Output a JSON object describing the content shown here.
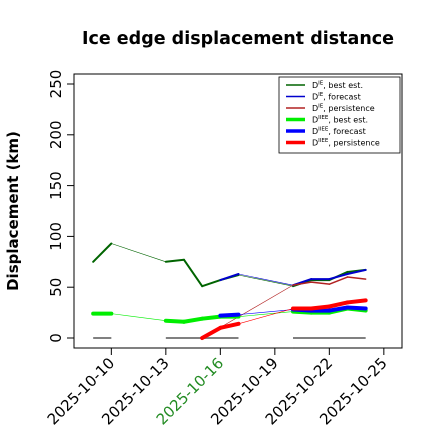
{
  "chart_data": {
    "type": "line",
    "title": "Ice edge displacement distance",
    "ylabel": "Displacement (km)",
    "xlabel": "",
    "ylim": [
      0,
      260
    ],
    "yticks": [
      0,
      50,
      100,
      150,
      200,
      250
    ],
    "xlim": [
      "2025-10-08",
      "2025-10-26"
    ],
    "xticks": [
      {
        "label": "2025-10-10",
        "color": "#000000"
      },
      {
        "label": "2025-10-13",
        "color": "#000000"
      },
      {
        "label": "2025-10-16",
        "color": "#228b22"
      },
      {
        "label": "2025-10-19",
        "color": "#000000"
      },
      {
        "label": "2025-10-22",
        "color": "#000000"
      },
      {
        "label": "2025-10-25",
        "color": "#000000"
      }
    ],
    "grid": false,
    "legend_position": "top-right",
    "series": [
      {
        "name": "D^IE, best est.",
        "legend_label": "D",
        "legend_sup": "IE",
        "legend_suffix": ", best est.",
        "color": "#006400",
        "width": 2,
        "points": [
          [
            "2025-10-09",
            75
          ],
          [
            "2025-10-10",
            93
          ],
          [
            "2025-10-13",
            75
          ],
          [
            "2025-10-14",
            77
          ],
          [
            "2025-10-15",
            51
          ],
          [
            "2025-10-16",
            57
          ],
          [
            "2025-10-17",
            62
          ],
          [
            "2025-10-20",
            51
          ],
          [
            "2025-10-21",
            57
          ],
          [
            "2025-10-22",
            57
          ],
          [
            "2025-10-23",
            65
          ],
          [
            "2025-10-24",
            67
          ]
        ]
      },
      {
        "name": "D^IE, forecast",
        "legend_label": "D",
        "legend_sup": "IE",
        "legend_suffix": ", forecast",
        "color": "#0000cd",
        "width": 2,
        "points": [
          [
            "2025-10-16",
            57
          ],
          [
            "2025-10-17",
            63
          ],
          [
            "2025-10-20",
            52
          ],
          [
            "2025-10-21",
            58
          ],
          [
            "2025-10-22",
            58
          ],
          [
            "2025-10-23",
            63
          ],
          [
            "2025-10-24",
            67
          ]
        ]
      },
      {
        "name": "D^IE, persistence",
        "legend_label": "D",
        "legend_sup": "IE",
        "legend_suffix": ", persistence",
        "color": "#b22222",
        "width": 1.5,
        "points": [
          [
            "2025-10-15",
            0
          ],
          [
            "2025-10-20",
            52
          ],
          [
            "2025-10-21",
            55
          ],
          [
            "2025-10-22",
            53
          ],
          [
            "2025-10-23",
            60
          ],
          [
            "2025-10-24",
            58
          ]
        ]
      },
      {
        "name": "D^IIEE, best est.",
        "legend_label": "D",
        "legend_sup": "IIEE",
        "legend_suffix": ", best est.",
        "color": "#00ee00",
        "width": 4,
        "points": [
          [
            "2025-10-09",
            24
          ],
          [
            "2025-10-10",
            24
          ],
          [
            "2025-10-13",
            17
          ],
          [
            "2025-10-14",
            16
          ],
          [
            "2025-10-15",
            19
          ],
          [
            "2025-10-16",
            21
          ],
          [
            "2025-10-17",
            21
          ],
          [
            "2025-10-20",
            26
          ],
          [
            "2025-10-21",
            25
          ],
          [
            "2025-10-22",
            25
          ],
          [
            "2025-10-23",
            29
          ],
          [
            "2025-10-24",
            27
          ]
        ]
      },
      {
        "name": "D^IIEE, forecast",
        "legend_label": "D",
        "legend_sup": "IIEE",
        "legend_suffix": ", forecast",
        "color": "#0000ff",
        "width": 4,
        "points": [
          [
            "2025-10-16",
            22
          ],
          [
            "2025-10-17",
            23
          ],
          [
            "2025-10-20",
            28
          ],
          [
            "2025-10-21",
            27
          ],
          [
            "2025-10-22",
            27
          ],
          [
            "2025-10-23",
            30
          ],
          [
            "2025-10-24",
            29
          ]
        ]
      },
      {
        "name": "D^IIEE, persistence",
        "legend_label": "D",
        "legend_sup": "IIEE",
        "legend_suffix": ", persistence",
        "color": "#ff0000",
        "width": 4,
        "points": [
          [
            "2025-10-15",
            0
          ],
          [
            "2025-10-16",
            10
          ],
          [
            "2025-10-17",
            14
          ],
          [
            "2025-10-20",
            29
          ],
          [
            "2025-10-21",
            29
          ],
          [
            "2025-10-22",
            31
          ],
          [
            "2025-10-23",
            35
          ],
          [
            "2025-10-24",
            37
          ]
        ]
      }
    ],
    "zero_markers": [
      {
        "from": "2025-10-09",
        "to": "2025-10-10"
      },
      {
        "from": "2025-10-13",
        "to": "2025-10-17"
      },
      {
        "from": "2025-10-20",
        "to": "2025-10-24"
      }
    ],
    "zero_marker_color": "#808080"
  }
}
